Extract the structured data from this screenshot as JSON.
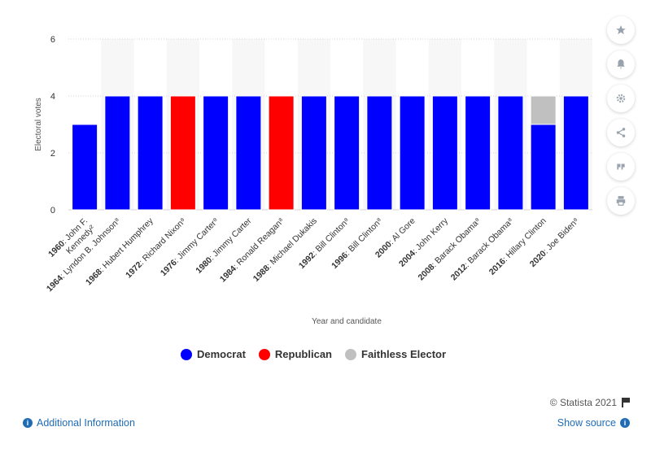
{
  "chart_data": {
    "type": "bar",
    "stacked": true,
    "ylabel": "Electoral votes",
    "xlabel": "Year and candidate",
    "ylim": [
      0,
      6
    ],
    "yticks": [
      0,
      2,
      4,
      6
    ],
    "categories": [
      {
        "year": "1960",
        "name": ": John F. Kennedy²"
      },
      {
        "year": "1964",
        "name": ": Lyndon B. Johnson⁸"
      },
      {
        "year": "1968",
        "name": ": Hubert Humphrey"
      },
      {
        "year": "1972",
        "name": ": Richard Nixon⁸"
      },
      {
        "year": "1976",
        "name": ": Jimmy Carter⁸"
      },
      {
        "year": "1980",
        "name": ": Jimmy Carter"
      },
      {
        "year": "1984",
        "name": ": Ronald Reagan⁸"
      },
      {
        "year": "1988",
        "name": ": Michael Dukakis"
      },
      {
        "year": "1992",
        "name": ": Bill Clinton⁸"
      },
      {
        "year": "1996",
        "name": ": Bill Clinton⁸"
      },
      {
        "year": "2000",
        "name": ": Al Gore"
      },
      {
        "year": "2004",
        "name": ": John Kerry"
      },
      {
        "year": "2008",
        "name": ": Barack Obama⁸"
      },
      {
        "year": "2012",
        "name": ": Barack Obama⁸"
      },
      {
        "year": "2016",
        "name": ": Hillary Clinton"
      },
      {
        "year": "2020",
        "name": ": Joe Biden⁸"
      }
    ],
    "series": [
      {
        "name": "Democrat",
        "color": "#0000ff",
        "values": [
          3,
          4,
          4,
          0,
          4,
          4,
          0,
          4,
          4,
          4,
          4,
          4,
          4,
          4,
          3,
          4
        ]
      },
      {
        "name": "Republican",
        "color": "#ff0000",
        "values": [
          0,
          0,
          0,
          4,
          0,
          0,
          4,
          0,
          0,
          0,
          0,
          0,
          0,
          0,
          0,
          0
        ]
      },
      {
        "name": "Faithless Elector",
        "color": "#c0c0c0",
        "values": [
          0,
          0,
          0,
          0,
          0,
          0,
          0,
          0,
          0,
          0,
          0,
          0,
          0,
          0,
          1,
          0
        ]
      }
    ],
    "legend_position": "bottom",
    "grid": true
  },
  "legend": [
    {
      "label": "Democrat",
      "color": "#0000ff"
    },
    {
      "label": "Republican",
      "color": "#ff0000"
    },
    {
      "label": "Faithless Elector",
      "color": "#c0c0c0"
    }
  ],
  "sidebar_icons": [
    "star-icon",
    "bell-icon",
    "gear-icon",
    "share-icon",
    "quote-icon",
    "print-icon"
  ],
  "credits": "© Statista 2021",
  "footer": {
    "additional_info": "Additional Information",
    "show_source": "Show source"
  }
}
